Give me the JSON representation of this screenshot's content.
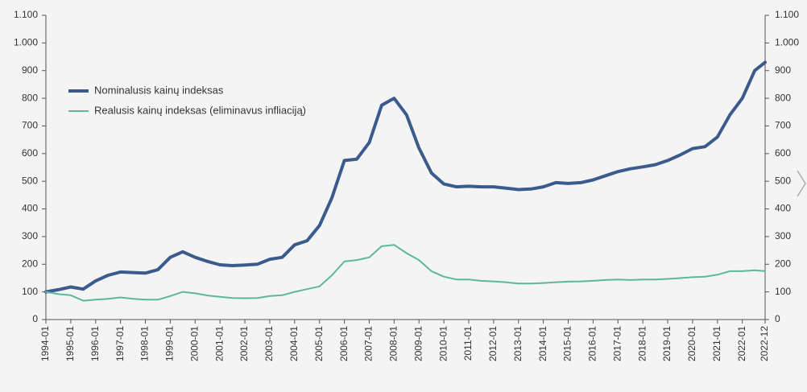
{
  "chart_data": {
    "type": "line",
    "legend_position": "upper left",
    "x": [
      "1994-01",
      "1994-07",
      "1995-01",
      "1995-07",
      "1996-01",
      "1996-07",
      "1997-01",
      "1997-07",
      "1998-01",
      "1998-07",
      "1999-01",
      "1999-07",
      "2000-01",
      "2000-07",
      "2001-01",
      "2001-07",
      "2002-01",
      "2002-07",
      "2003-01",
      "2003-07",
      "2004-01",
      "2004-07",
      "2005-01",
      "2005-07",
      "2006-01",
      "2006-07",
      "2007-01",
      "2007-07",
      "2008-01",
      "2008-07",
      "2009-01",
      "2009-07",
      "2010-01",
      "2010-07",
      "2011-01",
      "2011-07",
      "2012-01",
      "2012-07",
      "2013-01",
      "2013-07",
      "2014-01",
      "2014-07",
      "2015-01",
      "2015-07",
      "2016-01",
      "2016-07",
      "2017-01",
      "2017-07",
      "2018-01",
      "2018-07",
      "2019-01",
      "2019-07",
      "2020-01",
      "2020-07",
      "2021-01",
      "2021-07",
      "2022-01",
      "2022-07",
      "2022-12"
    ],
    "series": [
      {
        "name": "Nominalusis kainų indeksas",
        "color": "#3b5b8d",
        "width": 4,
        "values": [
          100,
          108,
          118,
          110,
          140,
          160,
          172,
          170,
          168,
          180,
          225,
          245,
          225,
          210,
          198,
          195,
          197,
          200,
          218,
          225,
          270,
          285,
          340,
          440,
          575,
          580,
          640,
          775,
          800,
          740,
          620,
          530,
          490,
          480,
          482,
          480,
          480,
          475,
          470,
          472,
          480,
          495,
          492,
          495,
          505,
          520,
          535,
          545,
          552,
          560,
          575,
          595,
          618,
          625,
          660,
          740,
          800,
          900,
          930
        ]
      },
      {
        "name": "Realusis kainų indeksas (eliminavus infliaciją)",
        "color": "#5fb79a",
        "width": 2,
        "values": [
          100,
          92,
          88,
          68,
          72,
          75,
          80,
          75,
          72,
          72,
          85,
          100,
          95,
          87,
          82,
          78,
          77,
          78,
          85,
          88,
          100,
          110,
          120,
          160,
          210,
          215,
          225,
          265,
          270,
          240,
          215,
          175,
          155,
          145,
          145,
          140,
          138,
          135,
          130,
          130,
          132,
          135,
          137,
          138,
          140,
          143,
          145,
          143,
          145,
          145,
          147,
          150,
          153,
          155,
          162,
          175,
          175,
          178,
          175
        ]
      }
    ],
    "xticks": [
      "1994-01",
      "1995-01",
      "1996-01",
      "1997-01",
      "1998-01",
      "1999-01",
      "2000-01",
      "2001-01",
      "2002-01",
      "2003-01",
      "2004-01",
      "2005-01",
      "2006-01",
      "2007-01",
      "2008-01",
      "2009-01",
      "2010-01",
      "2011-01",
      "2012-01",
      "2013-01",
      "2014-01",
      "2015-01",
      "2016-01",
      "2017-01",
      "2018-01",
      "2019-01",
      "2020-01",
      "2021-01",
      "2022-01",
      "2022-12"
    ],
    "ylim": [
      0,
      1100
    ],
    "yticks": [
      0,
      100,
      200,
      300,
      400,
      500,
      600,
      700,
      800,
      900,
      {
        "value": 1000,
        "label": "1.000"
      },
      {
        "value": 1100,
        "label": "1.100"
      }
    ],
    "y2lim": [
      0,
      1100
    ],
    "y2ticks": [
      0,
      100,
      200,
      300,
      400,
      500,
      600,
      700,
      800,
      900,
      {
        "value": 1000,
        "label": "1.000"
      },
      {
        "value": 1100,
        "label": "1.100"
      }
    ]
  }
}
